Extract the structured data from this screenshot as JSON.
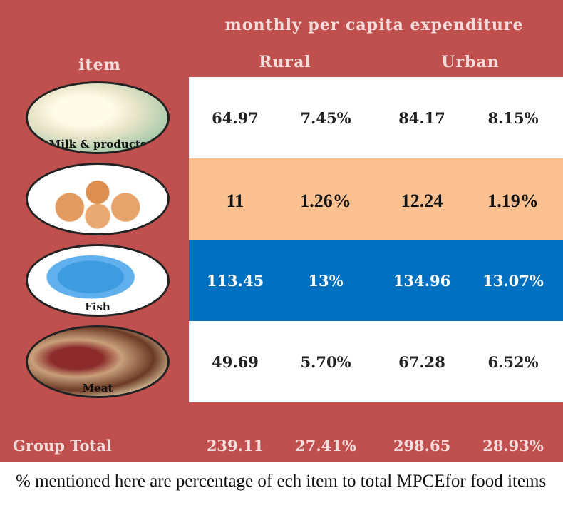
{
  "header": {
    "title": "monthly per capita expenditure",
    "item": "item",
    "groups": [
      "Rural",
      "Urban"
    ]
  },
  "table": {
    "rows": [
      {
        "label": "Milk & products",
        "values": [
          "64.97",
          "7.45%",
          "84.17",
          "8.15%"
        ]
      },
      {
        "values": [
          "11",
          "1.26%",
          "12.24",
          "1.19%"
        ]
      },
      {
        "label": "Fish",
        "values": [
          "113.45",
          "13%",
          "134.96",
          "13.07%"
        ]
      },
      {
        "label": "Meat",
        "values": [
          "49.69",
          "5.70%",
          "67.28",
          "6.52%"
        ]
      }
    ],
    "total": {
      "label": "Group Total",
      "values": [
        "239.11",
        "27.41%",
        "298.65",
        "28.93%"
      ]
    }
  },
  "footnote": "% mentioned here are percentage of ech item to total MPCEfor food items"
}
